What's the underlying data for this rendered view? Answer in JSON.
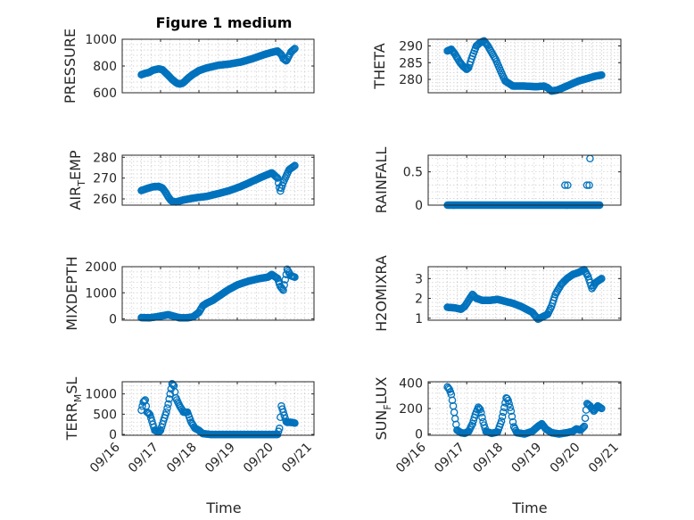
{
  "figure": {
    "title": "Figure 1 medium",
    "x_label": "Time",
    "colors": {
      "series": "#0072BD",
      "axis": "#262626",
      "grid": "#c9c9c9"
    }
  },
  "chart_data": [
    {
      "type": "scatter",
      "id": "pressure",
      "title": "Figure 1 medium",
      "ylabel": "PRESSURE",
      "ylabel_sub": "",
      "ylabel_tail": "",
      "ylim": [
        600,
        1000
      ],
      "yticks": [
        600,
        800,
        1000
      ],
      "yticklabels": [
        "600",
        "800",
        "1000"
      ],
      "xlim": [
        0,
        5
      ],
      "xticks": [
        0,
        1,
        2,
        3,
        4,
        5
      ],
      "xticklabels": [],
      "grid": true,
      "legend": "none",
      "anchors": [
        [
          0.5,
          735
        ],
        [
          0.6,
          745
        ],
        [
          0.7,
          752
        ],
        [
          0.8,
          768
        ],
        [
          0.95,
          778
        ],
        [
          1.05,
          772
        ],
        [
          1.12,
          752
        ],
        [
          1.2,
          730
        ],
        [
          1.3,
          700
        ],
        [
          1.42,
          672
        ],
        [
          1.5,
          665
        ],
        [
          1.58,
          672
        ],
        [
          1.65,
          690
        ],
        [
          1.72,
          710
        ],
        [
          1.85,
          738
        ],
        [
          2.0,
          765
        ],
        [
          2.2,
          785
        ],
        [
          2.5,
          805
        ],
        [
          2.8,
          815
        ],
        [
          3.1,
          830
        ],
        [
          3.4,
          855
        ],
        [
          3.7,
          885
        ],
        [
          3.9,
          902
        ],
        [
          4.05,
          912
        ],
        [
          4.15,
          885
        ],
        [
          4.2,
          855
        ],
        [
          4.28,
          838
        ],
        [
          4.4,
          905
        ],
        [
          4.5,
          930
        ]
      ]
    },
    {
      "type": "scatter",
      "id": "theta",
      "title": "",
      "ylabel": "THETA",
      "ylabel_sub": "",
      "ylabel_tail": "",
      "ylim": [
        276,
        292
      ],
      "yticks": [
        280,
        285,
        290
      ],
      "yticklabels": [
        "280",
        "285",
        "290"
      ],
      "xlim": [
        0,
        5
      ],
      "xticks": [
        0,
        1,
        2,
        3,
        4,
        5
      ],
      "xticklabels": [],
      "grid": true,
      "legend": "none",
      "anchors": [
        [
          0.5,
          288.5
        ],
        [
          0.6,
          289
        ],
        [
          0.7,
          287.5
        ],
        [
          0.8,
          285.5
        ],
        [
          0.9,
          284
        ],
        [
          1.0,
          283
        ],
        [
          1.05,
          283.5
        ],
        [
          1.15,
          287
        ],
        [
          1.25,
          290
        ],
        [
          1.35,
          291
        ],
        [
          1.45,
          291.5
        ],
        [
          1.55,
          290
        ],
        [
          1.65,
          288
        ],
        [
          1.75,
          286
        ],
        [
          1.9,
          282
        ],
        [
          2.0,
          279.5
        ],
        [
          2.2,
          278
        ],
        [
          2.5,
          278
        ],
        [
          2.8,
          277.8
        ],
        [
          3.0,
          278
        ],
        [
          3.1,
          277.5
        ],
        [
          3.2,
          276.5
        ],
        [
          3.35,
          276.8
        ],
        [
          3.5,
          277.5
        ],
        [
          3.7,
          278.5
        ],
        [
          3.9,
          279.5
        ],
        [
          4.05,
          280
        ],
        [
          4.2,
          280.5
        ],
        [
          4.35,
          281
        ],
        [
          4.5,
          281.3
        ]
      ]
    },
    {
      "type": "scatter",
      "id": "air_temp",
      "title": "",
      "ylabel": "AIR",
      "ylabel_sub": "T",
      "ylabel_tail": "EMP",
      "ylim": [
        257,
        281
      ],
      "yticks": [
        260,
        270,
        280
      ],
      "yticklabels": [
        "260",
        "270",
        "280"
      ],
      "xlim": [
        0,
        5
      ],
      "xticks": [
        0,
        1,
        2,
        3,
        4,
        5
      ],
      "xticklabels": [],
      "grid": true,
      "legend": "none",
      "anchors": [
        [
          0.5,
          264
        ],
        [
          0.65,
          265
        ],
        [
          0.8,
          265.8
        ],
        [
          0.95,
          266
        ],
        [
          1.05,
          265.2
        ],
        [
          1.12,
          263.5
        ],
        [
          1.2,
          261
        ],
        [
          1.28,
          259
        ],
        [
          1.4,
          258.5
        ],
        [
          1.6,
          259.5
        ],
        [
          1.9,
          260.5
        ],
        [
          2.2,
          261.2
        ],
        [
          2.5,
          262.5
        ],
        [
          2.8,
          264
        ],
        [
          3.1,
          266
        ],
        [
          3.4,
          268.5
        ],
        [
          3.7,
          271
        ],
        [
          3.9,
          272.5
        ],
        [
          4.05,
          270
        ],
        [
          4.12,
          263.5
        ],
        [
          4.2,
          268
        ],
        [
          4.35,
          274
        ],
        [
          4.5,
          276
        ]
      ]
    },
    {
      "type": "scatter",
      "id": "rainfall",
      "title": "",
      "ylabel": "RAINFALL",
      "ylabel_sub": "",
      "ylabel_tail": "",
      "ylim": [
        0,
        0.75
      ],
      "yticks": [
        0,
        0.5
      ],
      "yticklabels": [
        "0",
        "0.5"
      ],
      "xlim": [
        0,
        5
      ],
      "xticks": [
        0,
        1,
        2,
        3,
        4,
        5
      ],
      "xticklabels": [],
      "grid": true,
      "legend": "none",
      "baseline_range": [
        0.5,
        4.45
      ],
      "baseline_value": 0,
      "extra_points": [
        [
          3.55,
          0.3
        ],
        [
          3.62,
          0.3
        ],
        [
          4.12,
          0.3
        ],
        [
          4.18,
          0.3
        ],
        [
          4.2,
          0.7
        ]
      ]
    },
    {
      "type": "scatter",
      "id": "mixdepth",
      "title": "",
      "ylabel": "MIXDEPTH",
      "ylabel_sub": "",
      "ylabel_tail": "",
      "ylim": [
        -50,
        2000
      ],
      "yticks": [
        0,
        1000,
        2000
      ],
      "yticklabels": [
        "0",
        "1000",
        "2000"
      ],
      "xlim": [
        0,
        5
      ],
      "xticks": [
        0,
        1,
        2,
        3,
        4,
        5
      ],
      "xticklabels": [],
      "grid": true,
      "legend": "none",
      "anchors": [
        [
          0.5,
          50
        ],
        [
          0.7,
          40
        ],
        [
          0.9,
          80
        ],
        [
          1.05,
          120
        ],
        [
          1.2,
          160
        ],
        [
          1.35,
          100
        ],
        [
          1.5,
          40
        ],
        [
          1.7,
          40
        ],
        [
          1.85,
          80
        ],
        [
          2.0,
          250
        ],
        [
          2.1,
          500
        ],
        [
          2.2,
          600
        ],
        [
          2.35,
          700
        ],
        [
          2.55,
          900
        ],
        [
          2.75,
          1100
        ],
        [
          3.0,
          1300
        ],
        [
          3.3,
          1450
        ],
        [
          3.6,
          1550
        ],
        [
          3.8,
          1600
        ],
        [
          3.9,
          1700
        ],
        [
          4.05,
          1550
        ],
        [
          4.12,
          1250
        ],
        [
          4.2,
          1100
        ],
        [
          4.3,
          1900
        ],
        [
          4.4,
          1650
        ],
        [
          4.5,
          1600
        ]
      ]
    },
    {
      "type": "scatter",
      "id": "h2omixra",
      "title": "",
      "ylabel": "H2OMIXRA",
      "ylabel_sub": "",
      "ylabel_tail": "",
      "ylim": [
        0.9,
        3.6
      ],
      "yticks": [
        1,
        2,
        3
      ],
      "yticklabels": [
        "1",
        "2",
        "3"
      ],
      "xlim": [
        0,
        5
      ],
      "xticks": [
        0,
        1,
        2,
        3,
        4,
        5
      ],
      "xticklabels": [],
      "grid": true,
      "legend": "none",
      "anchors": [
        [
          0.5,
          1.55
        ],
        [
          0.7,
          1.52
        ],
        [
          0.85,
          1.45
        ],
        [
          0.95,
          1.6
        ],
        [
          1.05,
          1.9
        ],
        [
          1.15,
          2.2
        ],
        [
          1.25,
          2.0
        ],
        [
          1.4,
          1.9
        ],
        [
          1.6,
          1.9
        ],
        [
          1.8,
          1.95
        ],
        [
          2.0,
          1.85
        ],
        [
          2.2,
          1.75
        ],
        [
          2.4,
          1.6
        ],
        [
          2.55,
          1.45
        ],
        [
          2.7,
          1.3
        ],
        [
          2.85,
          0.95
        ],
        [
          3.0,
          1.1
        ],
        [
          3.1,
          1.2
        ],
        [
          3.2,
          1.6
        ],
        [
          3.3,
          2.2
        ],
        [
          3.45,
          2.7
        ],
        [
          3.6,
          3.0
        ],
        [
          3.75,
          3.2
        ],
        [
          3.9,
          3.3
        ],
        [
          4.05,
          3.45
        ],
        [
          4.15,
          3.1
        ],
        [
          4.25,
          2.5
        ],
        [
          4.35,
          2.8
        ],
        [
          4.5,
          3.0
        ]
      ]
    },
    {
      "type": "scatter",
      "id": "terr_msl",
      "title": "",
      "ylabel": "TERR",
      "ylabel_sub": "M",
      "ylabel_tail": "SL",
      "ylim": [
        -20,
        1300
      ],
      "yticks": [
        0,
        500,
        1000
      ],
      "yticklabels": [
        "0",
        "500",
        "1000"
      ],
      "xlim": [
        0,
        5
      ],
      "xticks": [
        0,
        1,
        2,
        3,
        4,
        5
      ],
      "xticklabels": [
        "09/16",
        "09/17",
        "09/18",
        "09/19",
        "09/20",
        "09/21"
      ],
      "grid": true,
      "legend": "none",
      "anchors": [
        [
          0.5,
          600
        ],
        [
          0.55,
          800
        ],
        [
          0.6,
          850
        ],
        [
          0.65,
          550
        ],
        [
          0.72,
          500
        ],
        [
          0.8,
          250
        ],
        [
          0.85,
          100
        ],
        [
          0.95,
          60
        ],
        [
          1.0,
          100
        ],
        [
          1.08,
          350
        ],
        [
          1.15,
          550
        ],
        [
          1.2,
          750
        ],
        [
          1.25,
          1000
        ],
        [
          1.3,
          1250
        ],
        [
          1.35,
          1200
        ],
        [
          1.4,
          900
        ],
        [
          1.5,
          700
        ],
        [
          1.6,
          550
        ],
        [
          1.7,
          550
        ],
        [
          1.8,
          300
        ],
        [
          1.9,
          150
        ],
        [
          2.0,
          100
        ],
        [
          2.1,
          20
        ],
        [
          2.3,
          0
        ],
        [
          2.8,
          0
        ],
        [
          3.3,
          0
        ],
        [
          3.9,
          0
        ],
        [
          4.05,
          0
        ],
        [
          4.1,
          150
        ],
        [
          4.15,
          700
        ],
        [
          4.2,
          550
        ],
        [
          4.28,
          300
        ],
        [
          4.4,
          300
        ],
        [
          4.5,
          280
        ]
      ]
    },
    {
      "type": "scatter",
      "id": "sun_flux",
      "title": "",
      "ylabel": "SUN",
      "ylabel_sub": "F",
      "ylabel_tail": "LUX",
      "ylim": [
        -10,
        410
      ],
      "yticks": [
        0,
        200,
        400
      ],
      "yticklabels": [
        "0",
        "200",
        "400"
      ],
      "xlim": [
        0,
        5
      ],
      "xticks": [
        0,
        1,
        2,
        3,
        4,
        5
      ],
      "xticklabels": [
        "09/16",
        "09/17",
        "09/18",
        "09/19",
        "09/20",
        "09/21"
      ],
      "grid": true,
      "legend": "none",
      "anchors": [
        [
          0.5,
          370
        ],
        [
          0.55,
          350
        ],
        [
          0.6,
          310
        ],
        [
          0.65,
          220
        ],
        [
          0.7,
          120
        ],
        [
          0.75,
          30
        ],
        [
          0.85,
          10
        ],
        [
          0.95,
          5
        ],
        [
          1.05,
          20
        ],
        [
          1.15,
          80
        ],
        [
          1.22,
          150
        ],
        [
          1.3,
          210
        ],
        [
          1.36,
          190
        ],
        [
          1.42,
          100
        ],
        [
          1.5,
          20
        ],
        [
          1.65,
          5
        ],
        [
          1.8,
          15
        ],
        [
          1.9,
          100
        ],
        [
          1.97,
          200
        ],
        [
          2.03,
          290
        ],
        [
          2.08,
          260
        ],
        [
          2.15,
          180
        ],
        [
          2.22,
          60
        ],
        [
          2.3,
          10
        ],
        [
          2.5,
          0
        ],
        [
          2.7,
          20
        ],
        [
          2.85,
          60
        ],
        [
          2.95,
          80
        ],
        [
          3.05,
          40
        ],
        [
          3.2,
          10
        ],
        [
          3.4,
          0
        ],
        [
          3.6,
          10
        ],
        [
          3.75,
          20
        ],
        [
          3.85,
          40
        ],
        [
          3.95,
          30
        ],
        [
          4.05,
          60
        ],
        [
          4.12,
          240
        ],
        [
          4.2,
          220
        ],
        [
          4.3,
          180
        ],
        [
          4.4,
          220
        ],
        [
          4.5,
          200
        ]
      ]
    }
  ]
}
